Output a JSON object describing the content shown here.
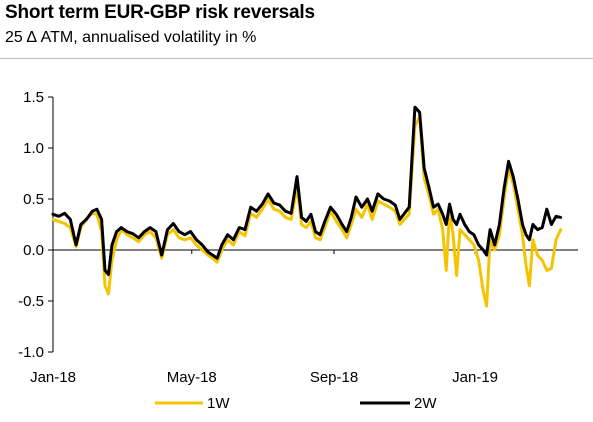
{
  "header": {
    "title": "Short term EUR-GBP risk reversals",
    "subtitle": "25 Δ ATM, annualised volatility in %"
  },
  "chart_data": {
    "type": "line",
    "title": "Short term EUR-GBP risk reversals",
    "subtitle": "25 Δ ATM, annualised volatility in %",
    "xlabel": "",
    "ylabel": "",
    "ylim": [
      -1.0,
      1.5
    ],
    "y_ticks": [
      1.5,
      1.0,
      0.5,
      0.0,
      -0.5,
      -1.0
    ],
    "y_tick_labels": [
      "1.5",
      "1.0",
      "0.5",
      "0.0",
      "-0.5",
      "-1.0"
    ],
    "x_range": [
      "2018-01-01",
      "2019-03-31"
    ],
    "x_ticks": [
      "2018-01-01",
      "2018-05-01",
      "2018-09-01",
      "2019-01-01"
    ],
    "x_tick_labels": [
      "Jan-18",
      "May-18",
      "Sep-18",
      "Jan-19"
    ],
    "grid": false,
    "legend_position": "bottom",
    "series": [
      {
        "name": "1W",
        "color": "#f5c400",
        "points": [
          [
            "2018-01-01",
            0.3
          ],
          [
            "2018-01-06",
            0.28
          ],
          [
            "2018-01-11",
            0.26
          ],
          [
            "2018-01-16",
            0.22
          ],
          [
            "2018-01-21",
            0.03
          ],
          [
            "2018-01-25",
            0.22
          ],
          [
            "2018-01-30",
            0.31
          ],
          [
            "2018-02-04",
            0.36
          ],
          [
            "2018-02-08",
            0.35
          ],
          [
            "2018-02-12",
            0.18
          ],
          [
            "2018-02-15",
            -0.35
          ],
          [
            "2018-02-18",
            -0.43
          ],
          [
            "2018-02-21",
            -0.1
          ],
          [
            "2018-02-25",
            0.1
          ],
          [
            "2018-03-01",
            0.2
          ],
          [
            "2018-03-06",
            0.15
          ],
          [
            "2018-03-11",
            0.12
          ],
          [
            "2018-03-16",
            0.08
          ],
          [
            "2018-03-21",
            0.15
          ],
          [
            "2018-03-26",
            0.18
          ],
          [
            "2018-03-31",
            0.12
          ],
          [
            "2018-04-05",
            -0.08
          ],
          [
            "2018-04-10",
            0.15
          ],
          [
            "2018-04-15",
            0.2
          ],
          [
            "2018-04-20",
            0.12
          ],
          [
            "2018-04-25",
            0.1
          ],
          [
            "2018-04-30",
            0.12
          ],
          [
            "2018-05-05",
            0.05
          ],
          [
            "2018-05-10",
            0.0
          ],
          [
            "2018-05-15",
            -0.05
          ],
          [
            "2018-05-19",
            -0.08
          ],
          [
            "2018-05-23",
            -0.12
          ],
          [
            "2018-05-27",
            0.0
          ],
          [
            "2018-06-01",
            0.1
          ],
          [
            "2018-06-06",
            0.05
          ],
          [
            "2018-06-11",
            0.18
          ],
          [
            "2018-06-16",
            0.14
          ],
          [
            "2018-06-21",
            0.36
          ],
          [
            "2018-06-26",
            0.32
          ],
          [
            "2018-07-01",
            0.4
          ],
          [
            "2018-07-06",
            0.5
          ],
          [
            "2018-07-11",
            0.4
          ],
          [
            "2018-07-16",
            0.38
          ],
          [
            "2018-07-21",
            0.32
          ],
          [
            "2018-07-26",
            0.3
          ],
          [
            "2018-07-31",
            0.62
          ],
          [
            "2018-08-04",
            0.25
          ],
          [
            "2018-08-08",
            0.22
          ],
          [
            "2018-08-12",
            0.28
          ],
          [
            "2018-08-16",
            0.12
          ],
          [
            "2018-08-20",
            0.1
          ],
          [
            "2018-08-24",
            0.22
          ],
          [
            "2018-08-29",
            0.38
          ],
          [
            "2018-09-03",
            0.28
          ],
          [
            "2018-09-08",
            0.2
          ],
          [
            "2018-09-12",
            0.12
          ],
          [
            "2018-09-16",
            0.25
          ],
          [
            "2018-09-20",
            0.4
          ],
          [
            "2018-09-25",
            0.32
          ],
          [
            "2018-09-30",
            0.45
          ],
          [
            "2018-10-04",
            0.3
          ],
          [
            "2018-10-09",
            0.48
          ],
          [
            "2018-10-14",
            0.45
          ],
          [
            "2018-10-19",
            0.42
          ],
          [
            "2018-10-24",
            0.38
          ],
          [
            "2018-10-28",
            0.25
          ],
          [
            "2018-11-01",
            0.3
          ],
          [
            "2018-11-05",
            0.35
          ],
          [
            "2018-11-10",
            1.22
          ],
          [
            "2018-11-14",
            1.3
          ],
          [
            "2018-11-18",
            0.7
          ],
          [
            "2018-11-22",
            0.55
          ],
          [
            "2018-11-26",
            0.35
          ],
          [
            "2018-11-30",
            0.4
          ],
          [
            "2018-12-04",
            0.2
          ],
          [
            "2018-12-07",
            -0.2
          ],
          [
            "2018-12-10",
            0.38
          ],
          [
            "2018-12-13",
            0.15
          ],
          [
            "2018-12-16",
            -0.25
          ],
          [
            "2018-12-19",
            0.2
          ],
          [
            "2018-12-23",
            0.15
          ],
          [
            "2018-12-27",
            0.1
          ],
          [
            "2018-12-31",
            0.05
          ],
          [
            "2019-01-04",
            -0.1
          ],
          [
            "2019-01-08",
            -0.4
          ],
          [
            "2019-01-11",
            -0.55
          ],
          [
            "2019-01-14",
            0.1
          ],
          [
            "2019-01-18",
            0.0
          ],
          [
            "2019-01-22",
            0.15
          ],
          [
            "2019-01-26",
            0.5
          ],
          [
            "2019-01-30",
            0.8
          ],
          [
            "2019-02-03",
            0.65
          ],
          [
            "2019-02-07",
            0.4
          ],
          [
            "2019-02-11",
            0.15
          ],
          [
            "2019-02-14",
            -0.15
          ],
          [
            "2019-02-17",
            -0.35
          ],
          [
            "2019-02-20",
            0.1
          ],
          [
            "2019-02-24",
            -0.05
          ],
          [
            "2019-02-28",
            -0.1
          ],
          [
            "2019-03-04",
            -0.2
          ],
          [
            "2019-03-08",
            -0.18
          ],
          [
            "2019-03-12",
            0.1
          ],
          [
            "2019-03-16",
            0.2
          ]
        ]
      },
      {
        "name": "2W",
        "color": "#000000",
        "points": [
          [
            "2018-01-01",
            0.35
          ],
          [
            "2018-01-06",
            0.33
          ],
          [
            "2018-01-11",
            0.36
          ],
          [
            "2018-01-16",
            0.3
          ],
          [
            "2018-01-21",
            0.05
          ],
          [
            "2018-01-25",
            0.25
          ],
          [
            "2018-01-30",
            0.3
          ],
          [
            "2018-02-04",
            0.38
          ],
          [
            "2018-02-08",
            0.4
          ],
          [
            "2018-02-12",
            0.3
          ],
          [
            "2018-02-15",
            -0.2
          ],
          [
            "2018-02-18",
            -0.24
          ],
          [
            "2018-02-21",
            0.05
          ],
          [
            "2018-02-25",
            0.18
          ],
          [
            "2018-03-01",
            0.22
          ],
          [
            "2018-03-06",
            0.18
          ],
          [
            "2018-03-11",
            0.16
          ],
          [
            "2018-03-16",
            0.12
          ],
          [
            "2018-03-21",
            0.18
          ],
          [
            "2018-03-26",
            0.22
          ],
          [
            "2018-03-31",
            0.18
          ],
          [
            "2018-04-05",
            -0.05
          ],
          [
            "2018-04-10",
            0.2
          ],
          [
            "2018-04-15",
            0.26
          ],
          [
            "2018-04-20",
            0.18
          ],
          [
            "2018-04-25",
            0.15
          ],
          [
            "2018-04-30",
            0.18
          ],
          [
            "2018-05-05",
            0.1
          ],
          [
            "2018-05-10",
            0.05
          ],
          [
            "2018-05-15",
            -0.02
          ],
          [
            "2018-05-19",
            -0.05
          ],
          [
            "2018-05-23",
            -0.08
          ],
          [
            "2018-05-27",
            0.05
          ],
          [
            "2018-06-01",
            0.15
          ],
          [
            "2018-06-06",
            0.1
          ],
          [
            "2018-06-11",
            0.22
          ],
          [
            "2018-06-16",
            0.2
          ],
          [
            "2018-06-21",
            0.42
          ],
          [
            "2018-06-26",
            0.38
          ],
          [
            "2018-07-01",
            0.45
          ],
          [
            "2018-07-06",
            0.55
          ],
          [
            "2018-07-11",
            0.46
          ],
          [
            "2018-07-16",
            0.44
          ],
          [
            "2018-07-21",
            0.38
          ],
          [
            "2018-07-26",
            0.36
          ],
          [
            "2018-07-31",
            0.72
          ],
          [
            "2018-08-04",
            0.32
          ],
          [
            "2018-08-08",
            0.28
          ],
          [
            "2018-08-12",
            0.35
          ],
          [
            "2018-08-16",
            0.18
          ],
          [
            "2018-08-20",
            0.15
          ],
          [
            "2018-08-24",
            0.28
          ],
          [
            "2018-08-29",
            0.42
          ],
          [
            "2018-09-03",
            0.35
          ],
          [
            "2018-09-08",
            0.25
          ],
          [
            "2018-09-12",
            0.18
          ],
          [
            "2018-09-16",
            0.32
          ],
          [
            "2018-09-20",
            0.52
          ],
          [
            "2018-09-25",
            0.42
          ],
          [
            "2018-09-30",
            0.5
          ],
          [
            "2018-10-04",
            0.38
          ],
          [
            "2018-10-09",
            0.55
          ],
          [
            "2018-10-14",
            0.5
          ],
          [
            "2018-10-19",
            0.48
          ],
          [
            "2018-10-24",
            0.44
          ],
          [
            "2018-10-28",
            0.3
          ],
          [
            "2018-11-01",
            0.36
          ],
          [
            "2018-11-05",
            0.42
          ],
          [
            "2018-11-10",
            1.4
          ],
          [
            "2018-11-14",
            1.35
          ],
          [
            "2018-11-18",
            0.8
          ],
          [
            "2018-11-22",
            0.62
          ],
          [
            "2018-11-26",
            0.42
          ],
          [
            "2018-11-30",
            0.45
          ],
          [
            "2018-12-04",
            0.35
          ],
          [
            "2018-12-07",
            0.25
          ],
          [
            "2018-12-10",
            0.45
          ],
          [
            "2018-12-13",
            0.3
          ],
          [
            "2018-12-16",
            0.25
          ],
          [
            "2018-12-19",
            0.35
          ],
          [
            "2018-12-23",
            0.25
          ],
          [
            "2018-12-27",
            0.18
          ],
          [
            "2018-12-31",
            0.15
          ],
          [
            "2019-01-04",
            0.05
          ],
          [
            "2019-01-08",
            0.0
          ],
          [
            "2019-01-11",
            -0.05
          ],
          [
            "2019-01-14",
            0.2
          ],
          [
            "2019-01-18",
            0.05
          ],
          [
            "2019-01-22",
            0.25
          ],
          [
            "2019-01-26",
            0.6
          ],
          [
            "2019-01-30",
            0.87
          ],
          [
            "2019-02-03",
            0.72
          ],
          [
            "2019-02-07",
            0.5
          ],
          [
            "2019-02-11",
            0.25
          ],
          [
            "2019-02-14",
            0.15
          ],
          [
            "2019-02-17",
            0.1
          ],
          [
            "2019-02-20",
            0.25
          ],
          [
            "2019-02-24",
            0.2
          ],
          [
            "2019-02-28",
            0.22
          ],
          [
            "2019-03-04",
            0.4
          ],
          [
            "2019-03-08",
            0.25
          ],
          [
            "2019-03-12",
            0.33
          ],
          [
            "2019-03-16",
            0.32
          ]
        ]
      }
    ]
  }
}
